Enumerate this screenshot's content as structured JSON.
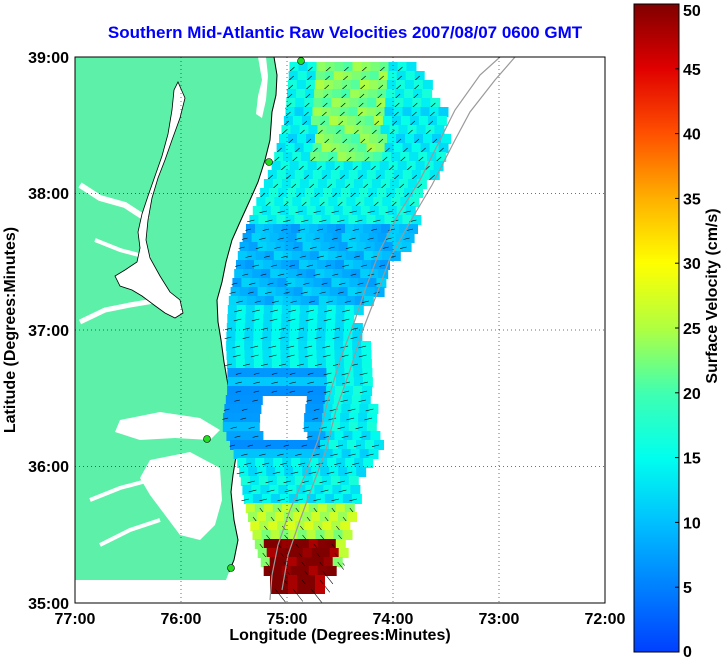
{
  "map": {
    "title": "Southern Mid-Atlantic Raw Velocities 2007/08/07 0600 GMT",
    "xlabel": "Longitude (Degrees:Minutes)",
    "ylabel": "Latitude (Degrees:Minutes)",
    "x_ticks": [
      "77:00",
      "76:00",
      "75:00",
      "74:00",
      "73:00",
      "72:00"
    ],
    "y_ticks": [
      "39:00",
      "38:00",
      "37:00",
      "36:00",
      "35:00"
    ],
    "lon_range": [
      -77,
      -72
    ],
    "lat_range": [
      35,
      39
    ],
    "land_color": "#5cf0a8",
    "grid": true
  },
  "colorbar": {
    "label": "Surface Velocity (cm/s)",
    "ticks": [
      "50",
      "45",
      "40",
      "35",
      "30",
      "25",
      "20",
      "15",
      "10",
      "5",
      "0"
    ],
    "range": [
      0,
      50
    ],
    "colormap": "jet"
  }
}
